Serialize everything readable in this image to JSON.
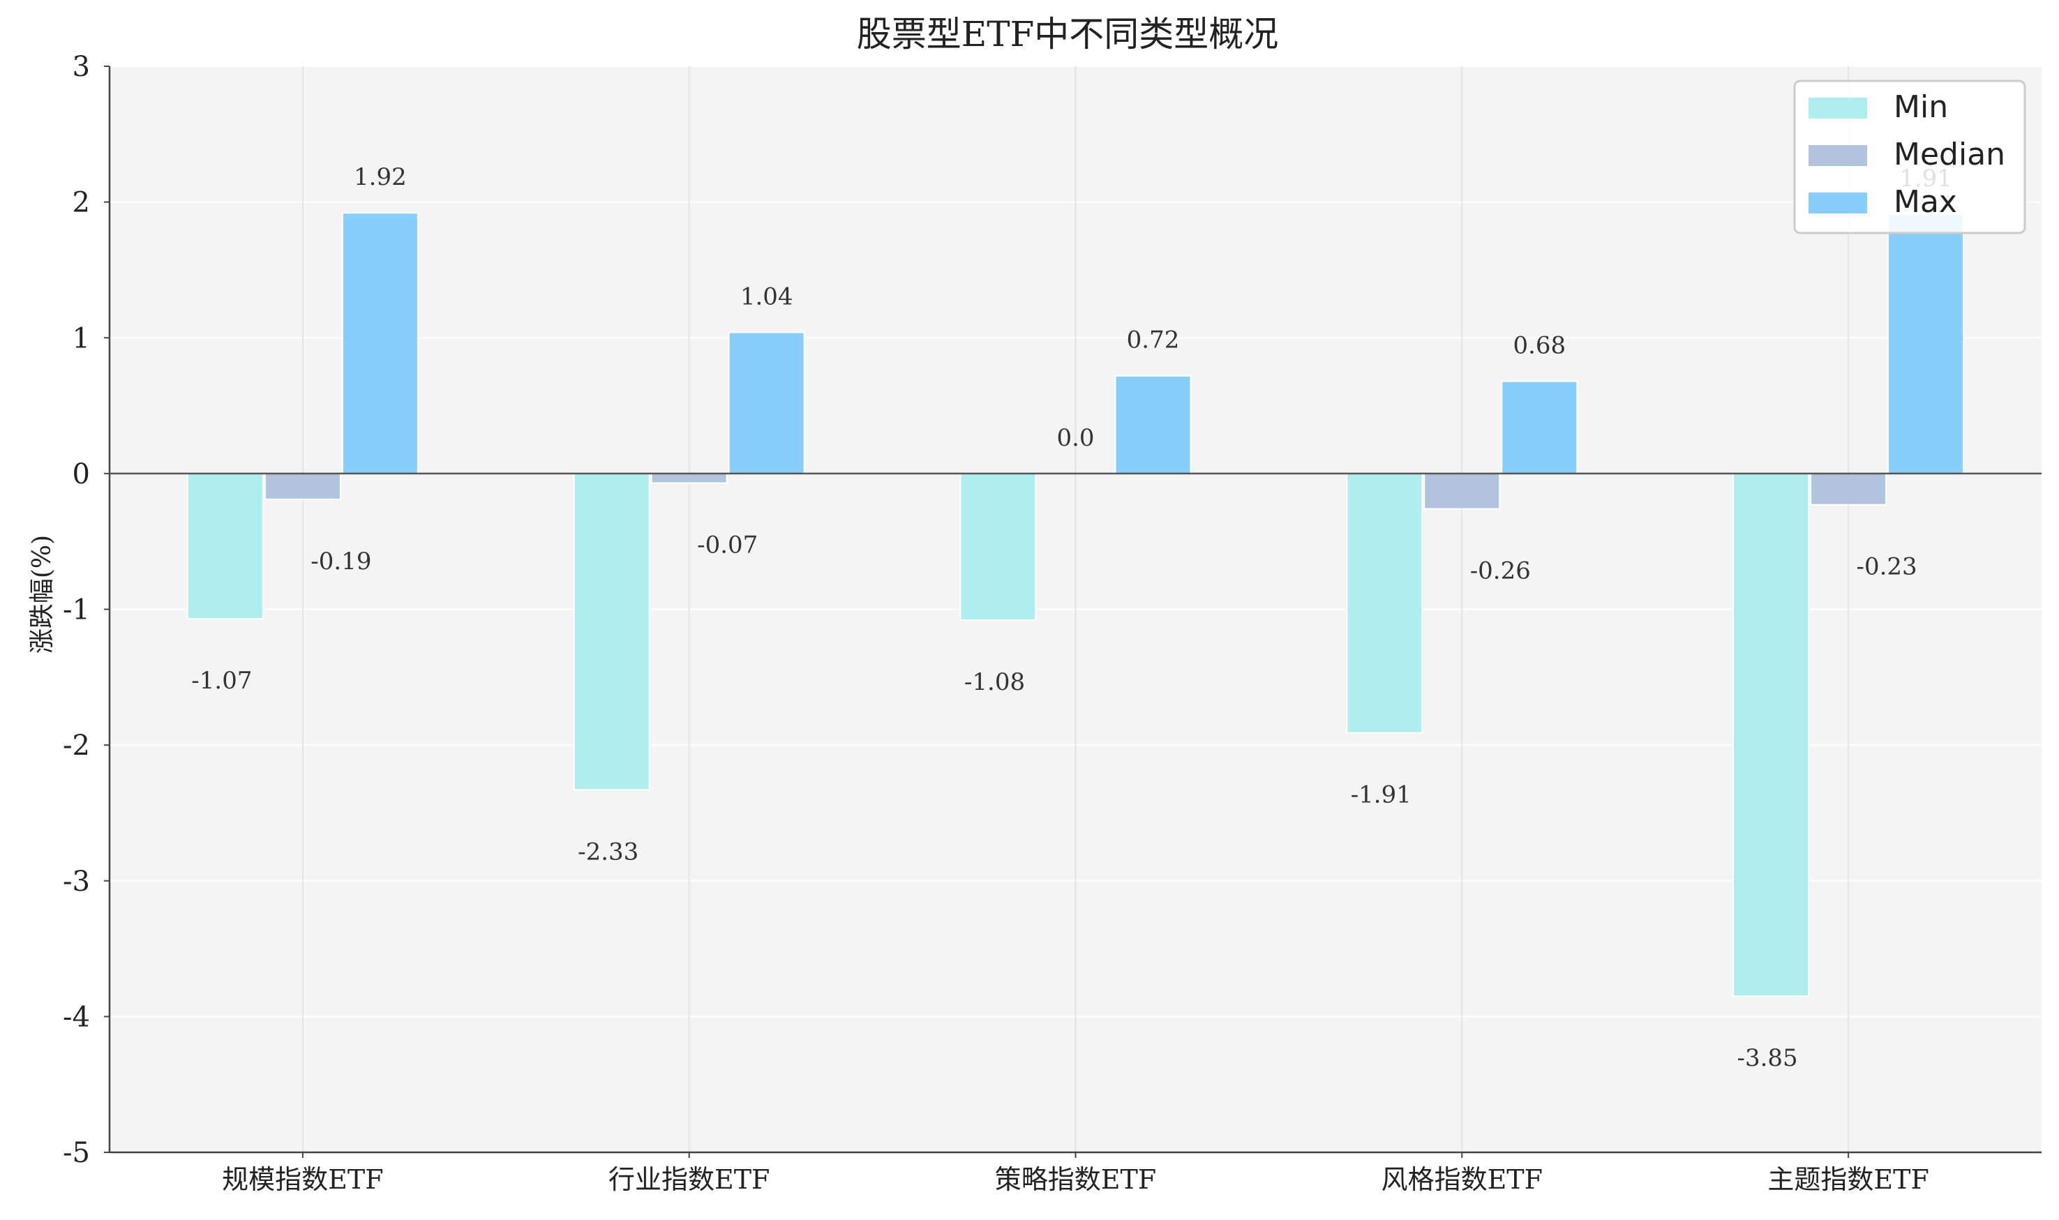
{
  "chart_data": {
    "type": "bar",
    "title": "股票型ETF中不同类型概况",
    "xlabel": "",
    "ylabel": "涨跌幅(%)",
    "categories": [
      "规模指数ETF",
      "行业指数ETF",
      "策略指数ETF",
      "风格指数ETF",
      "主题指数ETF"
    ],
    "series": [
      {
        "name": "Min",
        "values": [
          -1.07,
          -2.33,
          -1.08,
          -1.91,
          -3.85
        ],
        "value_labels": [
          "-1.07",
          "-2.33",
          "-1.08",
          "-1.91",
          "-3.85"
        ],
        "color": "#AFEEEE"
      },
      {
        "name": "Median",
        "values": [
          -0.19,
          -0.07,
          0.0,
          -0.26,
          -0.23
        ],
        "value_labels": [
          "-0.19",
          "-0.07",
          "0.0",
          "-0.26",
          "-0.23"
        ],
        "color": "#B0C4DE"
      },
      {
        "name": "Max",
        "values": [
          1.92,
          1.04,
          0.72,
          0.68,
          1.91
        ],
        "value_labels": [
          "1.92",
          "1.04",
          "0.72",
          "0.68",
          "1.91"
        ],
        "color": "#87CEFA"
      }
    ],
    "ylim": [
      -5,
      3
    ],
    "yticks": [
      3,
      2,
      1,
      0,
      -1,
      -2,
      -3,
      -4,
      -5
    ],
    "ytick_labels": [
      "3",
      "2",
      "1",
      "0",
      "-1",
      "-2",
      "-3",
      "-4",
      "-5"
    ],
    "grid": true,
    "legend_position": "top-right",
    "background_color": "#F4F4F4"
  }
}
